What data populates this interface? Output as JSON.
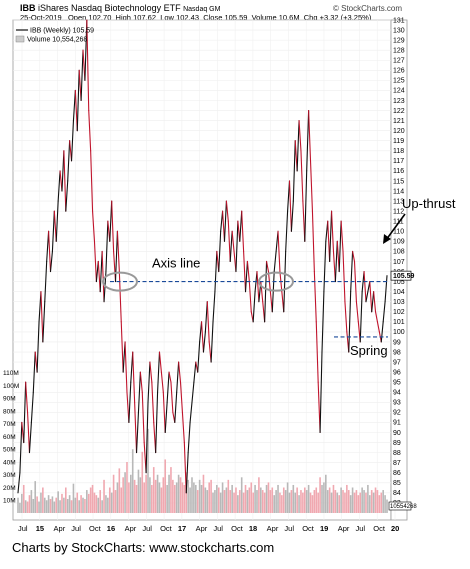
{
  "header": {
    "symbol": "IBB",
    "name": "iShares Nasdaq Biotechnology ETF",
    "exchange": "Nasdaq GM",
    "watermark": "© StockCharts.com",
    "date": "25-Oct-2019",
    "quote": {
      "open_label": "Open",
      "open": "102.70",
      "high_label": "High",
      "high": "107.62",
      "low_label": "Low",
      "low": "102.43",
      "close_label": "Close",
      "close": "105.59",
      "volume_label": "Volume",
      "volume": "10.6M",
      "chg_label": "Chg",
      "chg": "+3.32 (+3.25%)",
      "chg_arrow": "▲"
    }
  },
  "legend": {
    "price": "IBB (Weekly) 105.59",
    "volume": "Volume 10,554,268"
  },
  "annotations": {
    "axis_line": "Axis line",
    "upthrust": "Up-thrust",
    "spring": "Spring"
  },
  "footer": {
    "text": "Charts by StockCharts:  www.stockcharts.com"
  },
  "colors": {
    "up": "#111111",
    "down": "#c0142c",
    "dashed_line": "#1a4a9a",
    "volume_up": "#b8b8b8",
    "volume_down": "#f0a8b0",
    "circle": "#999999"
  },
  "chart_data": {
    "type": "line",
    "title": "IBB iShares Nasdaq Biotechnology ETF Nasdaq GM",
    "price_axis": {
      "min": 82,
      "max": 131,
      "ticks": [
        83,
        84,
        85,
        86,
        87,
        88,
        89,
        90,
        91,
        92,
        93,
        94,
        95,
        96,
        97,
        98,
        99,
        100,
        101,
        102,
        103,
        104,
        105,
        106,
        107,
        108,
        109,
        110,
        111,
        112,
        113,
        114,
        115,
        116,
        117,
        118,
        119,
        120,
        121,
        122,
        123,
        124,
        125,
        126,
        127,
        128,
        129,
        130,
        131
      ],
      "last_value_label": "105.59",
      "volume_value_label": "10554268"
    },
    "volume_axis": {
      "max": 120,
      "ticks": [
        "10M",
        "20M",
        "30M",
        "40M",
        "50M",
        "60M",
        "70M",
        "80M",
        "90M",
        "100M",
        "110M"
      ]
    },
    "x_axis": {
      "labels": [
        "Jul",
        "15",
        "Apr",
        "Jul",
        "Oct",
        "16",
        "Apr",
        "Jul",
        "Oct",
        "17",
        "Apr",
        "Jul",
        "Oct",
        "18",
        "Apr",
        "Jul",
        "Oct",
        "19",
        "Apr",
        "Jul",
        "Oct",
        "20"
      ],
      "bold": [
        "15",
        "16",
        "17",
        "18",
        "19",
        "20"
      ]
    },
    "series": [
      {
        "name": "IBB (Weekly)",
        "values": [
          84,
          86,
          91,
          89,
          95,
          92,
          88,
          91,
          94,
          98,
          96,
          101,
          104,
          99,
          103,
          107,
          110,
          106,
          108,
          112,
          109,
          113,
          116,
          114,
          118,
          112,
          115,
          119,
          117,
          121,
          124,
          120,
          126,
          123,
          128,
          125,
          131,
          122,
          118,
          112,
          109,
          105,
          107,
          104,
          108,
          103,
          106,
          111,
          109,
          113,
          108,
          105,
          110,
          106,
          101,
          96,
          99,
          94,
          91,
          95,
          98,
          93,
          88,
          92,
          96,
          94,
          89,
          86,
          93,
          97,
          95,
          91,
          88,
          94,
          98,
          96,
          94,
          90,
          93,
          96,
          95,
          92,
          91,
          94,
          97,
          95,
          92,
          89,
          84,
          88,
          91,
          93,
          95,
          97,
          96,
          99,
          101,
          98,
          100,
          103,
          99,
          97,
          101,
          104,
          108,
          106,
          110,
          112,
          109,
          113,
          111,
          107,
          110,
          108,
          106,
          111,
          109,
          112,
          108,
          104,
          107,
          105,
          102,
          101,
          104,
          106,
          103,
          105,
          103,
          101,
          107,
          106,
          104,
          102,
          106,
          108,
          110,
          106,
          104,
          102,
          108,
          112,
          115,
          110,
          113,
          119,
          116,
          121,
          118,
          113,
          109,
          116,
          122,
          117,
          112,
          106,
          101,
          95,
          90,
          98,
          104,
          109,
          111,
          107,
          112,
          108,
          105,
          109,
          106,
          111,
          108,
          103,
          100,
          98,
          104,
          108,
          107,
          103,
          101,
          99,
          104,
          106,
          103,
          104,
          105,
          102,
          104,
          102,
          101,
          100,
          99,
          101,
          103,
          105.59
        ],
        "up_color": "#111111",
        "down_color": "#c0142c"
      },
      {
        "name": "Volume",
        "values": [
          12,
          8,
          15,
          22,
          10,
          9,
          14,
          18,
          11,
          25,
          13,
          9,
          16,
          20,
          12,
          10,
          14,
          11,
          13,
          9,
          12,
          17,
          10,
          15,
          12,
          20,
          11,
          14,
          10,
          23,
          12,
          16,
          10,
          14,
          12,
          11,
          18,
          15,
          20,
          22,
          16,
          14,
          12,
          18,
          10,
          26,
          14,
          12,
          20,
          16,
          30,
          18,
          24,
          35,
          20,
          28,
          32,
          40,
          24,
          30,
          50,
          26,
          22,
          34,
          28,
          48,
          24,
          30,
          66,
          28,
          22,
          36,
          26,
          30,
          24,
          20,
          28,
          42,
          22,
          30,
          36,
          26,
          22,
          24,
          30,
          28,
          24,
          22,
          32,
          26,
          20,
          28,
          24,
          22,
          18,
          26,
          22,
          30,
          20,
          18,
          24,
          26,
          16,
          18,
          22,
          20,
          16,
          24,
          18,
          20,
          26,
          18,
          22,
          16,
          20,
          14,
          18,
          28,
          16,
          22,
          18,
          20,
          24,
          16,
          22,
          18,
          28,
          20,
          18,
          16,
          22,
          24,
          18,
          20,
          14,
          18,
          22,
          16,
          14,
          20,
          18,
          24,
          16,
          18,
          22,
          16,
          20,
          14,
          18,
          16,
          20,
          18,
          22,
          16,
          14,
          18,
          20,
          16,
          28,
          22,
          24,
          30,
          18,
          20,
          16,
          22,
          18,
          16,
          14,
          20,
          18,
          16,
          22,
          18,
          14,
          20,
          16,
          18,
          14,
          16,
          20,
          18,
          16,
          22,
          14,
          18,
          16,
          20,
          18,
          14,
          16,
          18,
          14,
          10.55
        ]
      }
    ],
    "annotations": [
      {
        "label": "Axis line",
        "price": 105
      },
      {
        "label": "Up-thrust",
        "price": 106
      },
      {
        "label": "Spring",
        "price": 99.5
      }
    ]
  }
}
